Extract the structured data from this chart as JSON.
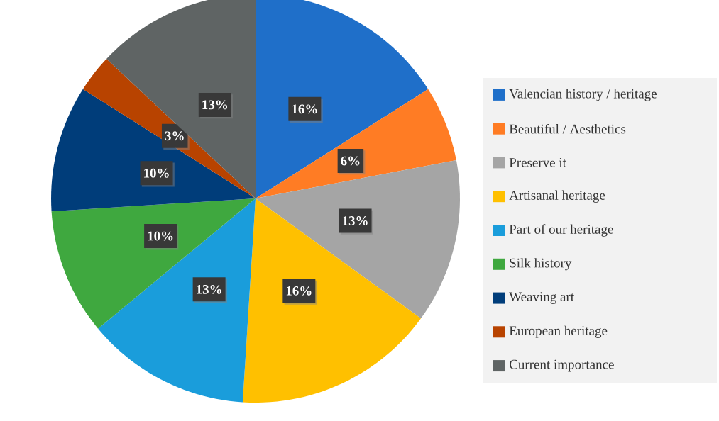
{
  "chart_data": {
    "type": "pie",
    "categories": [
      "Valencian history / heritage",
      "Beautiful / Aesthetics",
      "Preserve it",
      "Artisanal heritage",
      "Part of our heritage",
      "Silk history",
      "Weaving art",
      "European heritage",
      "Current importance"
    ],
    "values": [
      16,
      6,
      13,
      16,
      13,
      10,
      10,
      3,
      13
    ],
    "colors": [
      "#1f6fc9",
      "#ff7c24",
      "#a5a5a5",
      "#ffc000",
      "#1a9ddb",
      "#3fa83f",
      "#003d7a",
      "#b84300",
      "#5f6464"
    ],
    "value_labels": [
      "16%",
      "6%",
      "13%",
      "16%",
      "13%",
      "10%",
      "10%",
      "3%",
      "13%"
    ],
    "legend": "right"
  }
}
